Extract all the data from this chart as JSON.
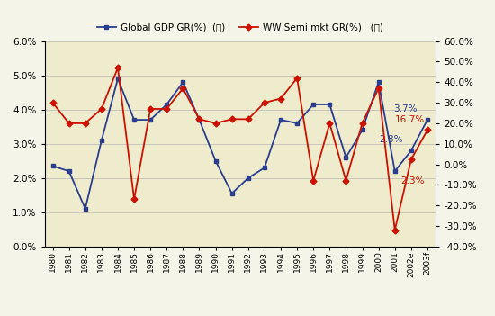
{
  "years": [
    "1980",
    "1981",
    "1982",
    "1983",
    "1984",
    "1985",
    "1986",
    "1987",
    "1988",
    "1989",
    "1990",
    "1991",
    "1992",
    "1993",
    "1994",
    "1995",
    "1996",
    "1997",
    "1998",
    "1999",
    "2000",
    "2001",
    "2002e",
    "2003f"
  ],
  "gdp": [
    2.35,
    2.2,
    1.1,
    3.1,
    4.9,
    3.7,
    3.7,
    4.15,
    4.8,
    3.7,
    2.5,
    1.55,
    2.0,
    2.3,
    3.7,
    3.6,
    4.15,
    4.15,
    2.6,
    3.4,
    4.8,
    2.2,
    2.8,
    3.7
  ],
  "semi": [
    30.0,
    20.0,
    20.0,
    27.0,
    47.0,
    -17.0,
    27.0,
    27.0,
    37.0,
    22.0,
    20.0,
    22.0,
    22.0,
    30.0,
    32.0,
    42.0,
    -8.0,
    20.0,
    -8.0,
    20.0,
    37.0,
    -32.0,
    2.3,
    16.7
  ],
  "gdp_color": "#2b3d8f",
  "semi_color": "#cc1100",
  "fig_bg": "#f5f4e8",
  "plot_bg": "#eeeccc",
  "legend_gdp": "Global GDP GR(%)  (左)",
  "legend_semi": "WW Semi mkt GR(%)   (右)",
  "ylim_left": [
    0.0,
    6.0
  ],
  "ylim_right": [
    -40.0,
    60.0
  ],
  "yticks_left": [
    0.0,
    1.0,
    2.0,
    3.0,
    4.0,
    5.0,
    6.0
  ],
  "yticks_right": [
    -40.0,
    -30.0,
    -20.0,
    -10.0,
    0.0,
    10.0,
    20.0,
    30.0,
    40.0,
    50.0,
    60.0
  ]
}
